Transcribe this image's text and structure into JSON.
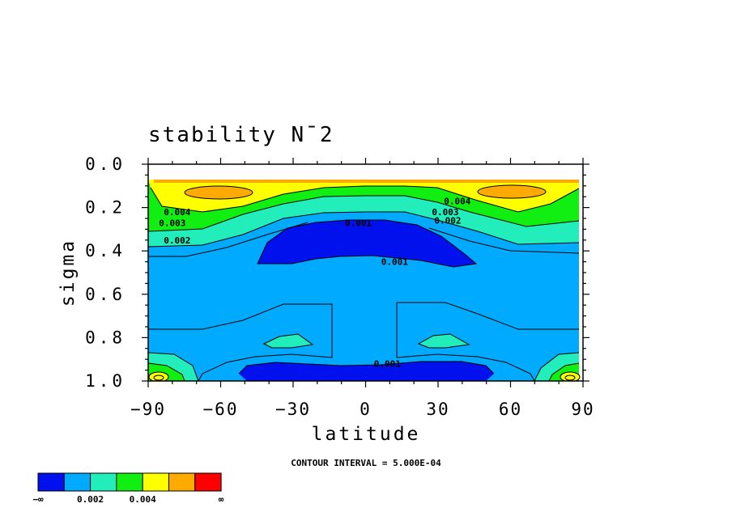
{
  "chart_data": {
    "type": "contour",
    "title": "stability N¯2",
    "xlabel": "latitude",
    "ylabel": "sigma",
    "xlim": [
      -90,
      90
    ],
    "ylim": [
      1.0,
      0.0
    ],
    "x_ticks": [
      "−90",
      "−60",
      "−30",
      "0",
      "30",
      "60",
      "90"
    ],
    "y_ticks": [
      "0.0",
      "0.2",
      "0.4",
      "0.6",
      "0.8",
      "1.0"
    ],
    "x_tick_values": [
      -90,
      -60,
      -30,
      0,
      30,
      60,
      90
    ],
    "y_tick_values": [
      0.0,
      0.2,
      0.4,
      0.6,
      0.8,
      1.0
    ],
    "contour_interval_text": "CONTOUR INTERVAL = 5.000E-04",
    "contour_labels": [
      {
        "text": "0.004",
        "lat": -78,
        "sigma": 0.22
      },
      {
        "text": "0.003",
        "lat": -80,
        "sigma": 0.27
      },
      {
        "text": "0.002",
        "lat": -78,
        "sigma": 0.35
      },
      {
        "text": "0.001",
        "lat": -3,
        "sigma": 0.27
      },
      {
        "text": "0.001",
        "lat": 12,
        "sigma": 0.45
      },
      {
        "text": "0.004",
        "lat": 38,
        "sigma": 0.17
      },
      {
        "text": "0.003",
        "lat": 33,
        "sigma": 0.22
      },
      {
        "text": "0.002",
        "lat": 34,
        "sigma": 0.26
      },
      {
        "text": "0.001",
        "lat": 9,
        "sigma": 0.92
      }
    ],
    "regions": [
      {
        "level": "light blue",
        "color": "#00AAFF",
        "lat": [
          -89,
          88
        ],
        "sigma": [
          0.08,
          1.0
        ]
      },
      {
        "level": "teal",
        "color": "#22EEBB",
        "lat": [
          -89,
          88
        ],
        "sigma": [
          0.22,
          0.33
        ]
      },
      {
        "level": "green",
        "color": "#11EE11",
        "lat": [
          -89,
          88
        ],
        "sigma": [
          0.12,
          0.28
        ]
      },
      {
        "level": "yellow",
        "color": "#FFFF00",
        "lat": [
          -89,
          88
        ],
        "sigma": [
          0.08,
          0.22
        ]
      },
      {
        "level": "dark blue",
        "color": "#0011EE",
        "lat": [
          -45,
          47
        ],
        "sigma": [
          0.28,
          0.48
        ]
      },
      {
        "level": "dark blue",
        "color": "#0011EE",
        "lat": [
          -53,
          52
        ],
        "sigma": [
          0.91,
          0.99
        ]
      }
    ],
    "colorbar": {
      "colors": [
        "#0011EE",
        "#00AAFF",
        "#22EEBB",
        "#11EE11",
        "#FFFF00",
        "#FFAA00",
        "#FF0000"
      ],
      "labels": [
        "−∞",
        "0.002",
        "0.004",
        "∞"
      ]
    }
  }
}
